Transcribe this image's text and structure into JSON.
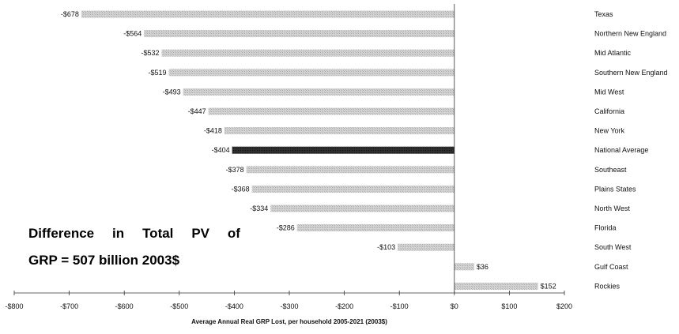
{
  "chart_data": {
    "type": "bar",
    "orientation": "horizontal",
    "title": "",
    "xlabel": "Average Annual Real GRP Lost, per household 2005-2021 (2003$)",
    "ylabel": "",
    "xlim": [
      -800,
      200
    ],
    "xticks": [
      "-$800",
      "-$700",
      "-$600",
      "-$500",
      "-$400",
      "-$300",
      "-$200",
      "-$100",
      "$0",
      "$100",
      "$200"
    ],
    "grid": false,
    "legend": "none",
    "categories": [
      "Texas",
      "Northern New England",
      "Mid Atlantic",
      "Southern New England",
      "Mid West",
      "California",
      "New York",
      "National Average",
      "Southeast",
      "Plains States",
      "North West",
      "Florida",
      "South West",
      "Gulf Coast",
      "Rockies"
    ],
    "values": [
      -678,
      -564,
      -532,
      -519,
      -493,
      -447,
      -418,
      -404,
      -378,
      -368,
      -334,
      -286,
      -103,
      36,
      152
    ],
    "value_labels": [
      "-$678",
      "-$564",
      "-$532",
      "-$519",
      "-$493",
      "-$447",
      "-$418",
      "-$404",
      "-$378",
      "-$368",
      "-$334",
      "-$286",
      "-$103",
      "$36",
      "$152"
    ],
    "highlight_category": "National Average",
    "colors": {
      "bar": "#c4c4c4",
      "highlight": "#2e2e2e",
      "axis": "#333333"
    }
  },
  "annotation": {
    "line1_words": [
      "Difference",
      "in",
      "Total",
      "PV",
      "of"
    ],
    "line2": "GRP = 507 billion 2003$"
  }
}
